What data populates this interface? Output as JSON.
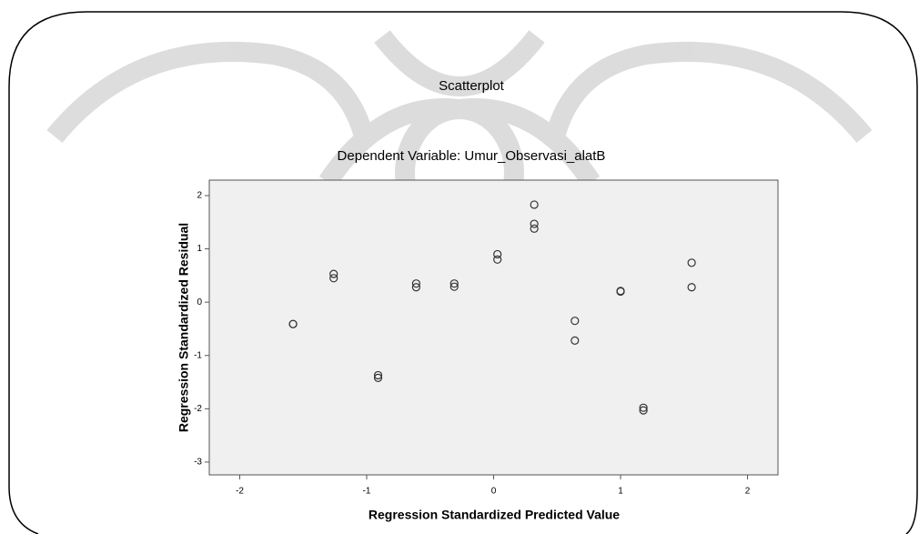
{
  "chart_data": {
    "type": "scatter",
    "title": "Scatterplot",
    "subtitle": "Dependent Variable: Umur_Observasi_alatB",
    "x_label": "Regression Standardized Predicted Value",
    "y_label": "Regression Standardized Residual",
    "x": [
      -1.58,
      -1.58,
      -1.26,
      -1.26,
      -0.91,
      -0.91,
      -0.61,
      -0.61,
      -0.31,
      -0.31,
      0.03,
      0.03,
      0.32,
      0.32,
      0.32,
      0.64,
      0.64,
      1.0,
      1.0,
      1.18,
      1.18,
      1.56,
      1.56
    ],
    "y": [
      -0.41,
      -0.41,
      0.53,
      0.45,
      -1.37,
      -1.42,
      0.35,
      0.28,
      0.35,
      0.29,
      0.9,
      0.8,
      1.83,
      1.47,
      1.38,
      -0.35,
      -0.72,
      0.21,
      0.2,
      -1.98,
      -2.03,
      0.74,
      0.28
    ],
    "color": "#333333",
    "xlim": [
      -2.24,
      2.24
    ],
    "xticks": [
      -2,
      -1,
      0,
      1,
      2
    ],
    "ylim": [
      -3.24,
      2.29
    ],
    "yticks": [
      -3,
      -2,
      -1,
      0,
      1,
      2
    ]
  }
}
